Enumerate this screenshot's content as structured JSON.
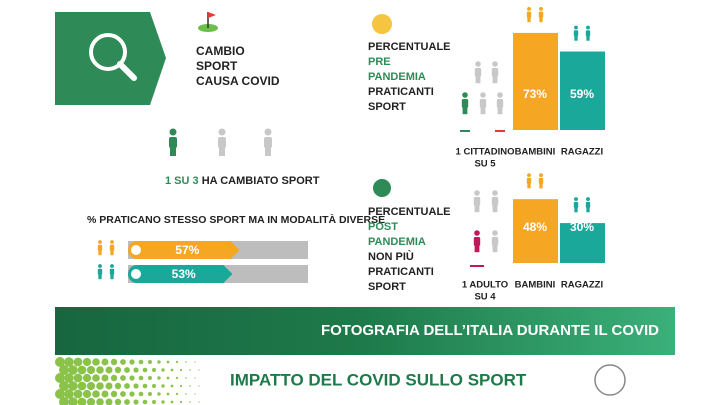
{
  "header": {
    "title_lines": [
      "CAMBIO",
      "SPORT",
      "CAUSA COVID"
    ]
  },
  "changed": {
    "highlight": "1 SU 3",
    "text": "HA CAMBIATO SPORT"
  },
  "same_sport": {
    "title": "% PRATICANO STESSO SPORT MA IN MODALITÀ DIVERSE",
    "bars": [
      {
        "value": 57,
        "label": "57%",
        "color": "#f5a623"
      },
      {
        "value": 53,
        "label": "53%",
        "color": "#1aa89a"
      }
    ]
  },
  "pre": {
    "lines": [
      {
        "text": "PERCENTUALE",
        "highlight": false
      },
      {
        "text": "PRE",
        "highlight": true
      },
      {
        "text": "PANDEMIA",
        "highlight": true
      },
      {
        "text": "PRATICANTI",
        "highlight": false
      },
      {
        "text": "SPORT",
        "highlight": false
      }
    ],
    "ratio_lines": [
      "1 CITTADINO",
      "SU 5"
    ],
    "bars": [
      {
        "name": "BAMBINI",
        "value": 73,
        "label": "73%",
        "color": "#f5a623"
      },
      {
        "name": "RAGAZZI",
        "value": 59,
        "label": "59%",
        "color": "#1aa89a"
      }
    ]
  },
  "post": {
    "lines": [
      {
        "text": "PERCENTUALE",
        "highlight": false
      },
      {
        "text": "POST",
        "highlight": true
      },
      {
        "text": "PANDEMIA",
        "highlight": true
      },
      {
        "text": "NON PIÙ",
        "highlight": false
      },
      {
        "text": "PRATICANTI",
        "highlight": false
      },
      {
        "text": "SPORT",
        "highlight": false
      }
    ],
    "ratio_lines": [
      "1 ADULTO",
      "SU 4"
    ],
    "bars": [
      {
        "name": "BAMBINI",
        "value": 48,
        "label": "48%",
        "color": "#f5a623"
      },
      {
        "name": "RAGAZZI",
        "value": 30,
        "label": "30%",
        "color": "#1aa89a"
      }
    ]
  },
  "banner": {
    "title": "FOTOGRAFIA DELL’ITALIA DURANTE IL COVID"
  },
  "footer": {
    "title": "IMPATTO DEL COVID SULLO SPORT"
  }
}
